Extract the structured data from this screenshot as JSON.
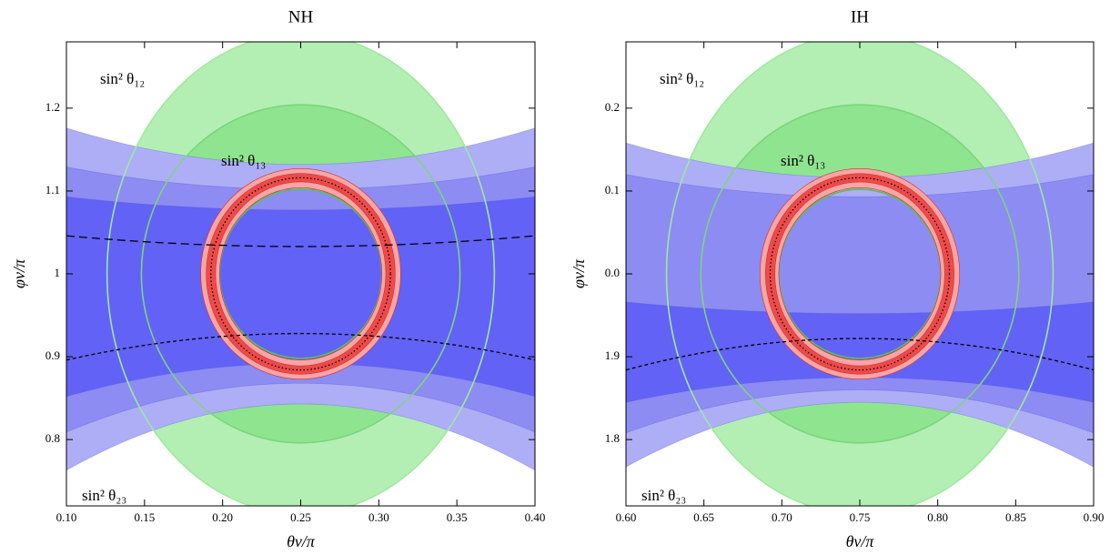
{
  "chart_data": [
    {
      "type": "contour",
      "title": "NH",
      "xlabel": "θν/π",
      "ylabel": "φν/π",
      "xlim": [
        0.1,
        0.4
      ],
      "ylim": [
        0.72,
        1.28
      ],
      "xticks": [
        {
          "value": 0.1,
          "label": "0.10"
        },
        {
          "value": 0.15,
          "label": "0.15"
        },
        {
          "value": 0.2,
          "label": "0.20"
        },
        {
          "value": 0.25,
          "label": "0.25"
        },
        {
          "value": 0.3,
          "label": "0.30"
        },
        {
          "value": 0.35,
          "label": "0.35"
        },
        {
          "value": 0.4,
          "label": "0.40"
        }
      ],
      "yticks": [
        0.8,
        0.9,
        1.0,
        1.1,
        1.2
      ],
      "annotations": [
        "sin² θ₁₂",
        "sin² θ₁₃",
        "sin² θ₂₃"
      ],
      "center": [
        0.25,
        1.0
      ],
      "ellipses": [
        {
          "radii": [
            0.124,
            0.29
          ],
          "color": "#b3efb3"
        },
        {
          "radii": [
            0.102,
            0.204
          ],
          "color": "#8fe48f"
        }
      ],
      "bands": [
        {
          "top": [
            1.132,
            1.176
          ],
          "bottom": [
            0.843,
            0.763
          ],
          "color": "#aeaef7"
        },
        {
          "top": [
            1.102,
            1.129
          ],
          "bottom": [
            0.868,
            0.809
          ],
          "color": "#8c8cf2"
        },
        {
          "top": [
            1.077,
            1.093
          ],
          "bottom": [
            0.892,
            0.852
          ],
          "color": "#6262f7"
        }
      ],
      "outlines": [
        {
          "radii": [
            0.124,
            0.29
          ],
          "color": "#9ee89e"
        },
        {
          "radii": [
            0.102,
            0.204
          ],
          "color": "#7bd67b"
        },
        {
          "radii": [
            0.052,
            0.102
          ],
          "color": "#55c455"
        }
      ],
      "rings": [
        {
          "outer": [
            0.064,
            0.127
          ],
          "inner": [
            0.052,
            0.104
          ],
          "color": "#f7a5a5"
        },
        {
          "outer": [
            0.0605,
            0.121
          ],
          "inner": [
            0.0545,
            0.111
          ],
          "color": "#ee4a4a"
        }
      ],
      "dashed": [
        {
          "y": [
            1.033,
            1.046
          ],
          "dash": "long"
        },
        {
          "y": [
            0.928,
            0.896
          ],
          "dash": "short"
        }
      ],
      "dotted": [
        0.0575,
        0.116
      ]
    },
    {
      "type": "contour",
      "title": "IH",
      "xlabel": "θν/π",
      "ylabel": "φν/π",
      "xlim": [
        0.6,
        0.9
      ],
      "ylim": [
        1.72,
        2.28
      ],
      "xticks": [
        {
          "value": 0.6,
          "label": "0.60"
        },
        {
          "value": 0.65,
          "label": "0.65"
        },
        {
          "value": 0.7,
          "label": "0.70"
        },
        {
          "value": 0.75,
          "label": "0.75"
        },
        {
          "value": 0.8,
          "label": "0.80"
        },
        {
          "value": 0.85,
          "label": "0.85"
        },
        {
          "value": 0.9,
          "label": "0.90"
        }
      ],
      "yticks": [
        1.8,
        1.9,
        {
          "value": 2.0,
          "label": "0.0"
        },
        {
          "value": 2.1,
          "label": "0.1"
        },
        {
          "value": 2.2,
          "label": "0.2"
        }
      ],
      "annotations": [
        "sin² θ₁₂",
        "sin² θ₁₃",
        "sin² θ₂₃"
      ],
      "center": [
        0.75,
        2.0
      ],
      "ellipses": [
        {
          "radii": [
            0.124,
            0.29
          ],
          "color": "#b3efb3"
        },
        {
          "radii": [
            0.102,
            0.204
          ],
          "color": "#8fe48f"
        }
      ],
      "bands": [
        {
          "top": [
            2.116,
            2.158
          ],
          "bottom": [
            1.845,
            1.767
          ],
          "color": "#aeaef7"
        },
        {
          "top": [
            2.093,
            2.12
          ],
          "bottom": [
            1.86,
            1.808
          ],
          "color": "#8c8cf2"
        },
        {
          "top": [
            1.952,
            1.966
          ],
          "bottom": [
            1.875,
            1.845
          ],
          "color": "#6262f7"
        }
      ],
      "outlines": [
        {
          "radii": [
            0.124,
            0.29
          ],
          "color": "#9ee89e"
        },
        {
          "radii": [
            0.102,
            0.204
          ],
          "color": "#7bd67b"
        },
        {
          "radii": [
            0.052,
            0.102
          ],
          "color": "#55c455"
        }
      ],
      "rings": [
        {
          "outer": [
            0.064,
            0.127
          ],
          "inner": [
            0.052,
            0.104
          ],
          "color": "#f7a5a5"
        },
        {
          "outer": [
            0.0605,
            0.121
          ],
          "inner": [
            0.0545,
            0.111
          ],
          "color": "#ee4a4a"
        }
      ],
      "dashed": [
        {
          "y": [
            1.922,
            1.884
          ],
          "dash": "short"
        }
      ],
      "dotted": [
        0.0575,
        0.116
      ]
    }
  ]
}
